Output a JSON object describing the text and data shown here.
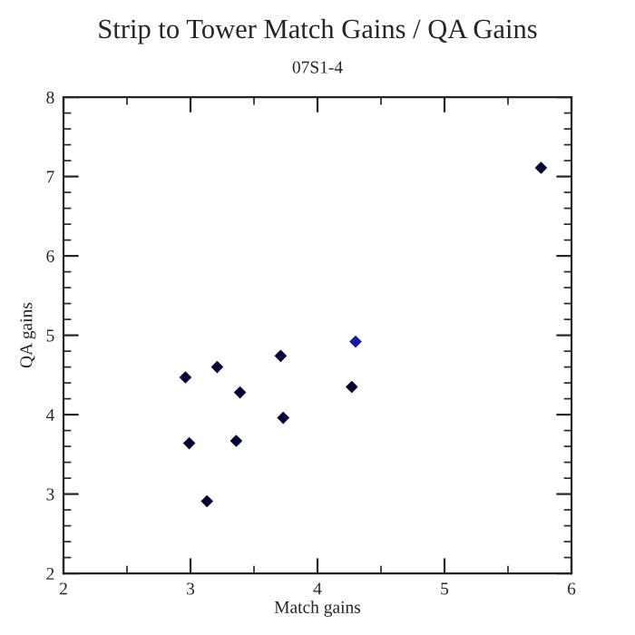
{
  "chart_data": {
    "type": "scatter",
    "title": "Strip to Tower Match Gains / QA Gains",
    "subtitle": "07S1-4",
    "xlabel": "Match gains",
    "ylabel": "QA gains",
    "x": [
      2.96,
      3.21,
      3.71,
      3.39,
      3.73,
      2.99,
      3.36,
      3.13,
      4.3,
      4.27,
      5.76
    ],
    "values": [
      4.47,
      4.6,
      4.74,
      4.28,
      3.96,
      3.64,
      3.67,
      2.91,
      4.92,
      4.35,
      7.11
    ],
    "colors": [
      "#000033",
      "#000033",
      "#000033",
      "#000033",
      "#000033",
      "#000033",
      "#000033",
      "#000033",
      "#1a1aa0",
      "#000033",
      "#000033"
    ],
    "marker": "diamond",
    "xlim": [
      2,
      6
    ],
    "ylim": [
      2,
      8
    ],
    "xticks": [
      2,
      3,
      4,
      5,
      6
    ],
    "yticks": [
      2,
      3,
      4,
      5,
      6,
      7,
      8
    ],
    "grid": false,
    "legend": false
  }
}
